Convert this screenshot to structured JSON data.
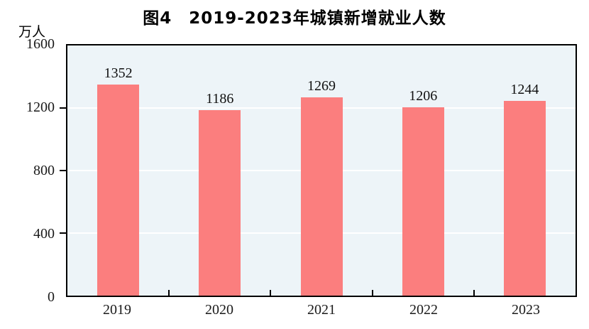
{
  "figure": {
    "title": "图4　2019-2023年城镇新增就业人数",
    "y_unit_label": "万人"
  },
  "chart_data": {
    "type": "bar",
    "title": "图4　2019-2023年城镇新增就业人数",
    "categories": [
      "2019",
      "2020",
      "2021",
      "2022",
      "2023"
    ],
    "values": [
      1352,
      1186,
      1269,
      1206,
      1244
    ],
    "xlabel": "",
    "ylabel": "万人",
    "ylim": [
      0,
      1600
    ],
    "yticks": [
      0,
      400,
      800,
      1200,
      1600
    ],
    "ytick_marks_at": [
      400,
      800,
      1200
    ],
    "gridlines": "horizontal at 400, 800, 1200",
    "legend_position": "none",
    "colors": {
      "bar": "#FB7E7E",
      "plot_background": "#EDF4F8",
      "gridline": "#FFFFFF",
      "axis": "#000000",
      "text": "#1a1a1a",
      "page_background": "#FFFFFF"
    }
  }
}
